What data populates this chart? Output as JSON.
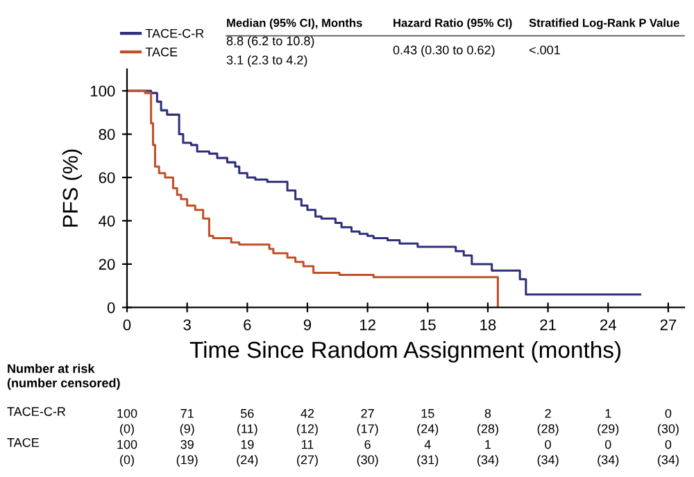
{
  "chart_data": {
    "type": "step",
    "xlabel": "Time Since Random Assignment (months)",
    "ylabel": "PFS (%)",
    "xlim": [
      0,
      27.8
    ],
    "xticks": [
      0,
      3,
      6,
      9,
      12,
      15,
      18,
      21,
      24,
      27
    ],
    "ylim": [
      0,
      110
    ],
    "yticks": [
      0,
      20,
      40,
      60,
      80,
      100
    ],
    "grid": false,
    "legend": "top left",
    "series": [
      {
        "name": "TACE-C-R",
        "color": "#2e2f7a",
        "x": [
          0,
          1.2,
          1.5,
          1.7,
          2.0,
          2.6,
          2.8,
          3.2,
          3.5,
          4.1,
          4.5,
          5.0,
          5.4,
          5.6,
          6.0,
          6.4,
          7.0,
          8.0,
          8.4,
          8.7,
          9.0,
          9.4,
          9.7,
          10.4,
          10.7,
          11.2,
          11.6,
          12.0,
          12.3,
          13.0,
          13.6,
          14.5,
          16.4,
          16.8,
          17.2,
          18.2,
          19.6,
          19.9,
          20.1,
          25.6
        ],
        "values": [
          100,
          99,
          95,
          91,
          89,
          80,
          76,
          75,
          72,
          71,
          69,
          67,
          65,
          62,
          60,
          59,
          58,
          54,
          50,
          47,
          45,
          42,
          41,
          39,
          37,
          35,
          34,
          33,
          32,
          31,
          29.5,
          28,
          26,
          24,
          20,
          17,
          13,
          6,
          6,
          6
        ]
      },
      {
        "name": "TACE",
        "color": "#c0502a",
        "x": [
          0,
          0.9,
          1.2,
          1.3,
          1.4,
          1.6,
          1.9,
          2.3,
          2.5,
          2.7,
          3.0,
          3.4,
          3.8,
          4.1,
          4.3,
          5.2,
          5.6,
          7.1,
          7.3,
          8.0,
          8.4,
          8.8,
          9.3,
          10.6,
          12.3,
          18.5,
          18.5
        ],
        "values": [
          100,
          99,
          85,
          75,
          65,
          62,
          60,
          55,
          52,
          50,
          47,
          45,
          41,
          33,
          32,
          30,
          29,
          27,
          25,
          23,
          21,
          19,
          16,
          15,
          14,
          0,
          0
        ]
      }
    ],
    "annotations": [
      "Median (95% CI), Months",
      "Hazard Ratio (95% CI)",
      "Stratified Log-Rank P Value",
      "8.8 (6.2 to 10.8)",
      "3.1 (2.3 to 4.2)",
      "0.43 (0.30 to 0.62)",
      "<.001",
      "Number at risk\n(number censored)",
      "100\n(0)",
      "71\n(9)",
      "56\n(11)",
      "42\n(12)",
      "27\n(17)",
      "15\n(24)",
      "8\n(28)",
      "2\n(28)",
      "1\n(29)",
      "0\n(30)",
      "100\n(0)",
      "39\n(19)",
      "19\n(24)",
      "11\n(27)",
      "6\n(30)",
      "4\n(31)",
      "1\n(34)",
      "0\n(34)",
      "0\n(34)",
      "0\n(34)"
    ]
  }
}
